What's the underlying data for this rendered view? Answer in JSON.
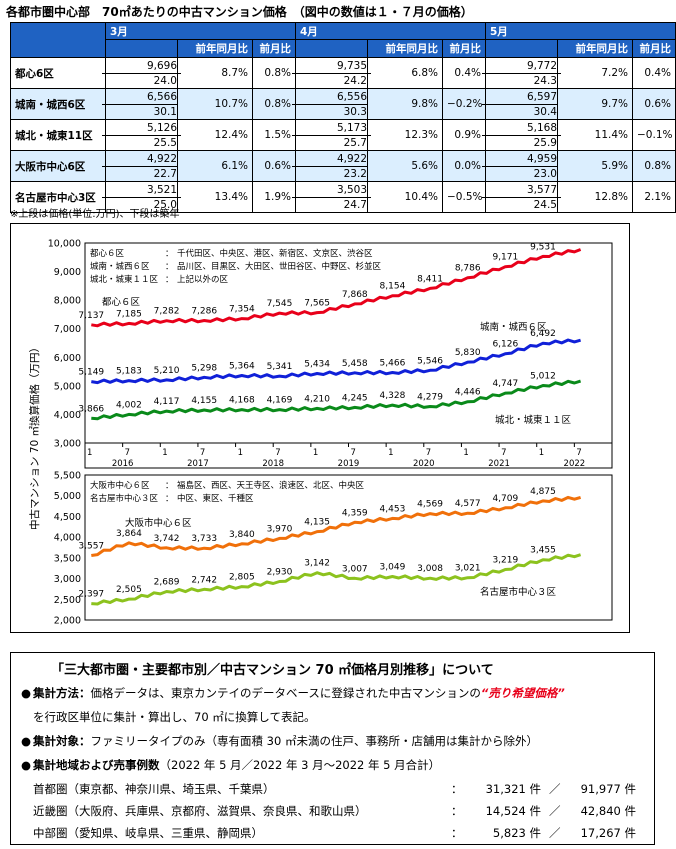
{
  "title": "各都市圏中心部　70㎡あたりの中古マンション価格　（図中の数値は１・７月の価格）",
  "table": {
    "months": [
      "3月",
      "4月",
      "5月"
    ],
    "subheaders": [
      "前年同月比",
      "前月比"
    ],
    "rows": [
      {
        "label": "都心6区",
        "alt": false,
        "cells": [
          {
            "price": "9,696",
            "age": "24.0",
            "yoy": "8.7%",
            "mom": "0.8%"
          },
          {
            "price": "9,735",
            "age": "24.2",
            "yoy": "6.8%",
            "mom": "0.4%"
          },
          {
            "price": "9,772",
            "age": "24.3",
            "yoy": "7.2%",
            "mom": "0.4%"
          }
        ]
      },
      {
        "label": "城南・城西6区",
        "alt": true,
        "cells": [
          {
            "price": "6,566",
            "age": "30.1",
            "yoy": "10.7%",
            "mom": "0.8%"
          },
          {
            "price": "6,556",
            "age": "30.3",
            "yoy": "9.8%",
            "mom": "−0.2%"
          },
          {
            "price": "6,597",
            "age": "30.4",
            "yoy": "9.7%",
            "mom": "0.6%"
          }
        ]
      },
      {
        "label": "城北・城東11区",
        "alt": false,
        "cells": [
          {
            "price": "5,126",
            "age": "25.5",
            "yoy": "12.4%",
            "mom": "1.5%"
          },
          {
            "price": "5,173",
            "age": "25.7",
            "yoy": "12.3%",
            "mom": "0.9%"
          },
          {
            "price": "5,168",
            "age": "25.9",
            "yoy": "11.4%",
            "mom": "−0.1%"
          }
        ]
      },
      {
        "label": "大阪市中心6区",
        "alt": true,
        "cells": [
          {
            "price": "4,922",
            "age": "22.7",
            "yoy": "6.1%",
            "mom": "0.6%"
          },
          {
            "price": "4,922",
            "age": "23.2",
            "yoy": "5.6%",
            "mom": "0.0%"
          },
          {
            "price": "4,959",
            "age": "23.0",
            "yoy": "5.9%",
            "mom": "0.8%"
          }
        ]
      },
      {
        "label": "名古屋市中心3区",
        "alt": false,
        "cells": [
          {
            "price": "3,521",
            "age": "25.0",
            "yoy": "13.4%",
            "mom": "1.9%"
          },
          {
            "price": "3,503",
            "age": "24.7",
            "yoy": "10.4%",
            "mom": "−0.5%"
          },
          {
            "price": "3,577",
            "age": "24.5",
            "yoy": "12.8%",
            "mom": "2.1%"
          }
        ]
      }
    ]
  },
  "note": "※上段は価格(単位:万円)、下段は築年",
  "chart_data": {
    "type": "line",
    "ylabel": "中古マンション 70 ㎡換算価格（万円）",
    "x_ticks": [
      "1",
      "7",
      "1",
      "7",
      "1",
      "7",
      "1",
      "7",
      "1",
      "7",
      "1",
      "7",
      "1",
      "7"
    ],
    "x_years": [
      "2016",
      "2017",
      "2018",
      "2019",
      "2020",
      "2021",
      "2022"
    ],
    "panels": [
      {
        "ylim": [
          3000,
          10000
        ],
        "yticks": [
          "10,000",
          "9,000",
          "8,000",
          "7,000",
          "6,000",
          "5,000",
          "4,000",
          "3,000"
        ],
        "legend": [
          {
            "name": "都心６区",
            "areas": "千代田区、中央区、港区、新宿区、文京区、渋谷区"
          },
          {
            "name": "城南・城西６区",
            "areas": "品川区、目黒区、大田区、世田谷区、中野区、杉並区"
          },
          {
            "name": "城北・城東１１区",
            "areas": "上記以外の区"
          }
        ],
        "series": [
          {
            "name": "都心６区",
            "color": "#e8001a",
            "months": [
              1,
              7,
              13,
              19,
              25,
              31,
              37,
              43,
              49,
              55,
              61,
              67,
              73,
              79
            ],
            "values": [
              7137,
              7185,
              7282,
              7286,
              7354,
              7545,
              7565,
              7868,
              8154,
              8411,
              8786,
              9171,
              9531,
              9772
            ],
            "labels": [
              "7,137",
              "7,185",
              "7,282",
              "7,286",
              "7,354",
              "7,545",
              "7,565",
              "7,868",
              "8,154",
              "8,411",
              "8,786",
              "9,171",
              "9,531"
            ]
          },
          {
            "name": "城南・城西６区",
            "color": "#1020d8",
            "months": [
              1,
              7,
              13,
              19,
              25,
              31,
              37,
              43,
              49,
              55,
              61,
              67,
              73,
              79
            ],
            "values": [
              5149,
              5183,
              5210,
              5298,
              5364,
              5341,
              5434,
              5458,
              5466,
              5546,
              5830,
              6126,
              6492,
              6597
            ],
            "labels": [
              "5,149",
              "5,183",
              "5,210",
              "5,298",
              "5,364",
              "5,341",
              "5,434",
              "5,458",
              "5,466",
              "5,546",
              "5,830",
              "6,126",
              "6,492"
            ]
          },
          {
            "name": "城北・城東１１区",
            "color": "#0a8a1a",
            "months": [
              1,
              7,
              13,
              19,
              25,
              31,
              37,
              43,
              49,
              55,
              61,
              67,
              73,
              79
            ],
            "values": [
              3866,
              4002,
              4117,
              4155,
              4168,
              4169,
              4210,
              4245,
              4328,
              4279,
              4446,
              4747,
              5012,
              5168
            ],
            "labels": [
              "3,866",
              "4,002",
              "4,117",
              "4,155",
              "4,168",
              "4,169",
              "4,210",
              "4,245",
              "4,328",
              "4,279",
              "4,446",
              "4,747",
              "5,012"
            ]
          }
        ],
        "callouts": [
          "都心６区",
          "城南・城西６区",
          "城北・城東１１区"
        ]
      },
      {
        "ylim": [
          2000,
          5500
        ],
        "yticks": [
          "5,500",
          "5,000",
          "4,500",
          "4,000",
          "3,500",
          "3,000",
          "2,500",
          "2,000"
        ],
        "legend": [
          {
            "name": "大阪市中心６区",
            "areas": "福島区、西区、天王寺区、浪速区、北区、中央区"
          },
          {
            "name": "名古屋市中心３区",
            "areas": "中区、東区、千種区"
          }
        ],
        "series": [
          {
            "name": "大阪市中心６区",
            "color": "#f0700a",
            "months": [
              1,
              7,
              13,
              19,
              25,
              31,
              37,
              43,
              49,
              55,
              61,
              67,
              73,
              79
            ],
            "values": [
              3557,
              3864,
              3742,
              3733,
              3840,
              3970,
              4135,
              4359,
              4453,
              4569,
              4577,
              4709,
              4875,
              4959
            ],
            "labels": [
              "3,557",
              "3,864",
              "3,742",
              "3,733",
              "3,840",
              "3,970",
              "4,135",
              "4,359",
              "4,453",
              "4,569",
              "4,577",
              "4,709",
              "4,875"
            ]
          },
          {
            "name": "名古屋市中心３区",
            "color": "#8cc21e",
            "months": [
              1,
              7,
              13,
              19,
              25,
              31,
              37,
              43,
              49,
              55,
              61,
              67,
              73,
              79
            ],
            "values": [
              2397,
              2505,
              2689,
              2742,
              2805,
              2930,
              3142,
              3007,
              3049,
              3008,
              3021,
              3219,
              3455,
              3577
            ],
            "labels": [
              "2,397",
              "2,505",
              "2,689",
              "2,742",
              "2,805",
              "2,930",
              "3,142",
              "3,007",
              "3,049",
              "3,008",
              "3,021",
              "3,219",
              "3,455"
            ]
          }
        ],
        "callouts": [
          "大阪市中心６区",
          "名古屋市中心３区"
        ]
      }
    ]
  },
  "info": {
    "heading": "「三大都市圏・主要都市別／中古マンション 70 ㎡価格月別推移」について",
    "bullet": "●",
    "method_label": "集計方法：",
    "method_text": "価格データは、東京カンテイのデータベースに登録された中古マンションの",
    "method_highlight": "“売り希望価格”",
    "method_text2": "を行政区単位に集計・算出し、70 ㎡に換算して表記。",
    "target_label": "集計対象：",
    "target_text": "ファミリータイプのみ（専有面積 30 ㎡未満の住戸、事務所・店舗用は集計から除外）",
    "region_label": "集計地域および売事例数",
    "region_text": "（2022 年 5 月／2022 年 3 月～2022 年 5 月合計）",
    "regions": [
      {
        "name": "首都圏（東京都、神奈川県、埼玉県、千葉県）",
        "month": "31,321 件",
        "total": "91,977 件"
      },
      {
        "name": "近畿圏（大阪府、兵庫県、京都府、滋賀県、奈良県、和歌山県）",
        "month": "14,524 件",
        "total": "42,840 件"
      },
      {
        "name": "中部圏（愛知県、岐阜県、三重県、静岡県）",
        "month": "5,823 件",
        "total": "17,267 件"
      }
    ],
    "sep": "：",
    "slash": "／"
  }
}
